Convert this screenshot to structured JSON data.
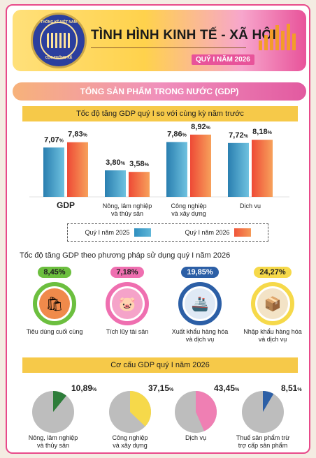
{
  "header": {
    "title": "TÌNH HÌNH KINH TẾ - XÃ HỘI",
    "subtitle": "QUÝ I NĂM 2026",
    "emblem_top": "THỐNG KÊ VIỆT NAM",
    "emblem_bottom": "CỤC THỐNG KÊ"
  },
  "section_title": "TỔNG SẢN PHẨM TRONG NƯỚC (GDP)",
  "chart_data": [
    {
      "type": "bar",
      "title": "Tốc độ tăng GDP quý I so với cùng kỳ năm trước",
      "categories": [
        "GDP",
        "Nông, lâm nghiệp và thủy sản",
        "Công nghiệp và xây dựng",
        "Dịch vụ"
      ],
      "category_lines": [
        [
          "GDP"
        ],
        [
          "Nông, lâm nghiệp",
          "và thủy sản"
        ],
        [
          "Công nghiệp",
          "và xây dựng"
        ],
        [
          "Dịch vụ"
        ]
      ],
      "value_labels": [
        [
          "7,07",
          "7,83"
        ],
        [
          "3,80",
          "3,58"
        ],
        [
          "7,86",
          "8,92"
        ],
        [
          "7,72",
          "8,18"
        ]
      ],
      "unit": "%",
      "series": [
        {
          "name": "Quý I năm 2025",
          "values": [
            7.07,
            3.8,
            7.86,
            7.72
          ],
          "color": "#2f8fbf"
        },
        {
          "name": "Quý I năm 2026",
          "values": [
            7.83,
            3.58,
            8.92,
            8.18
          ],
          "color": "#f0553a"
        }
      ],
      "ylim": [
        0,
        10
      ],
      "legend_position": "bottom"
    },
    {
      "type": "pie",
      "title": "Cơ cấu GDP quý I năm 2026",
      "unit": "%",
      "slices": [
        {
          "label": "Nông, lâm nghiệp và thủy sản",
          "lines": [
            "Nông, lâm nghiệp",
            "và thủy sản"
          ],
          "value": 10.89,
          "value_label": "10,89",
          "color": "#2e7d3a"
        },
        {
          "label": "Công nghiệp và xây dựng",
          "lines": [
            "Công nghiệp",
            "và xây dựng"
          ],
          "value": 37.15,
          "value_label": "37,15",
          "color": "#f6d94a"
        },
        {
          "label": "Dịch vụ",
          "lines": [
            "Dịch vụ"
          ],
          "value": 43.45,
          "value_label": "43,45",
          "color": "#ef7fb3"
        },
        {
          "label": "Thuế sản phẩm trừ trợ cấp sản phẩm",
          "lines": [
            "Thuế sản phẩm trừ",
            "trợ cấp sản phẩm"
          ],
          "value": 8.51,
          "value_label": "8,51",
          "color": "#2c5fa6"
        }
      ],
      "rest_color": "#bdbdbd"
    }
  ],
  "methods": {
    "title": "Tốc độ tăng GDP theo phương pháp sử dụng quý I năm 2026",
    "items": [
      {
        "value": "8,45%",
        "label1": "Tiêu dùng cuối cùng",
        "label2": "",
        "icon": "shopping-bag-icon",
        "color": "#6cbf3f",
        "fill": "#f08a4b",
        "glyph": "🛍"
      },
      {
        "value": "7,18%",
        "label1": "Tích lũy tài sản",
        "label2": "",
        "icon": "piggy-bank-icon",
        "color": "#ef6fb0",
        "fill": "#f5a3c9",
        "glyph": "🐷"
      },
      {
        "value": "19,85%",
        "label1": "Xuất khẩu hàng hóa",
        "label2": "và dịch vụ",
        "icon": "cargo-ship-icon",
        "color": "#2c5fa6",
        "fill": "#dfe9f5",
        "glyph": "🚢"
      },
      {
        "value": "24,27%",
        "label1": "Nhập khẩu hàng hóa",
        "label2": "và dịch vụ",
        "icon": "delivery-box-icon",
        "color": "#f6d94a",
        "fill": "#f3e3c6",
        "glyph": "📦"
      }
    ]
  }
}
